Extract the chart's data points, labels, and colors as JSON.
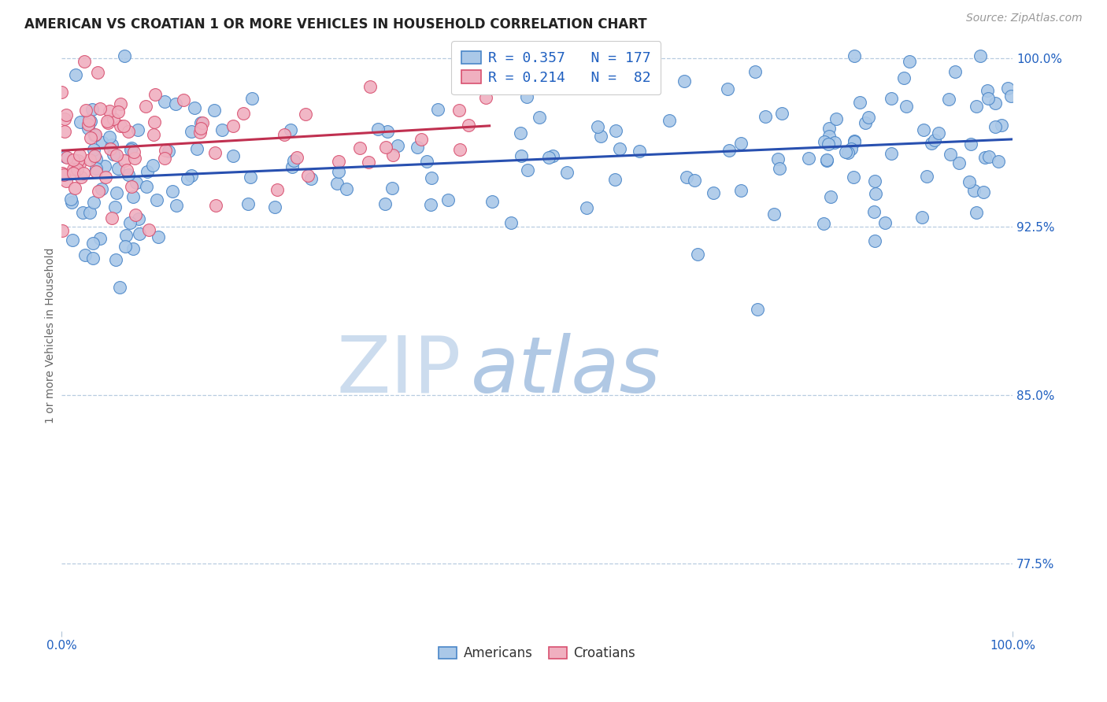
{
  "title": "AMERICAN VS CROATIAN 1 OR MORE VEHICLES IN HOUSEHOLD CORRELATION CHART",
  "source": "Source: ZipAtlas.com",
  "ylabel": "1 or more Vehicles in Household",
  "xlim": [
    0.0,
    1.0
  ],
  "ylim": [
    0.745,
    1.008
  ],
  "yticks": [
    0.775,
    0.85,
    0.925,
    1.0
  ],
  "ytick_labels": [
    "77.5%",
    "85.0%",
    "92.5%",
    "100.0%"
  ],
  "american_color": "#aac8e8",
  "american_edge_color": "#4a86c8",
  "croatian_color": "#f0b0c0",
  "croatian_edge_color": "#d85070",
  "american_R": 0.357,
  "american_N": 177,
  "croatian_R": 0.214,
  "croatian_N": 82,
  "american_line_color": "#2850b0",
  "croatian_line_color": "#c03050",
  "legend_R_color": "#2060c0",
  "background_color": "#ffffff",
  "grid_color": "#b8cce0",
  "watermark_zip_color": "#c8dcf0",
  "watermark_atlas_color": "#a0c0e0",
  "title_fontsize": 12,
  "source_fontsize": 10,
  "tick_fontsize": 11,
  "legend_fontsize": 13
}
